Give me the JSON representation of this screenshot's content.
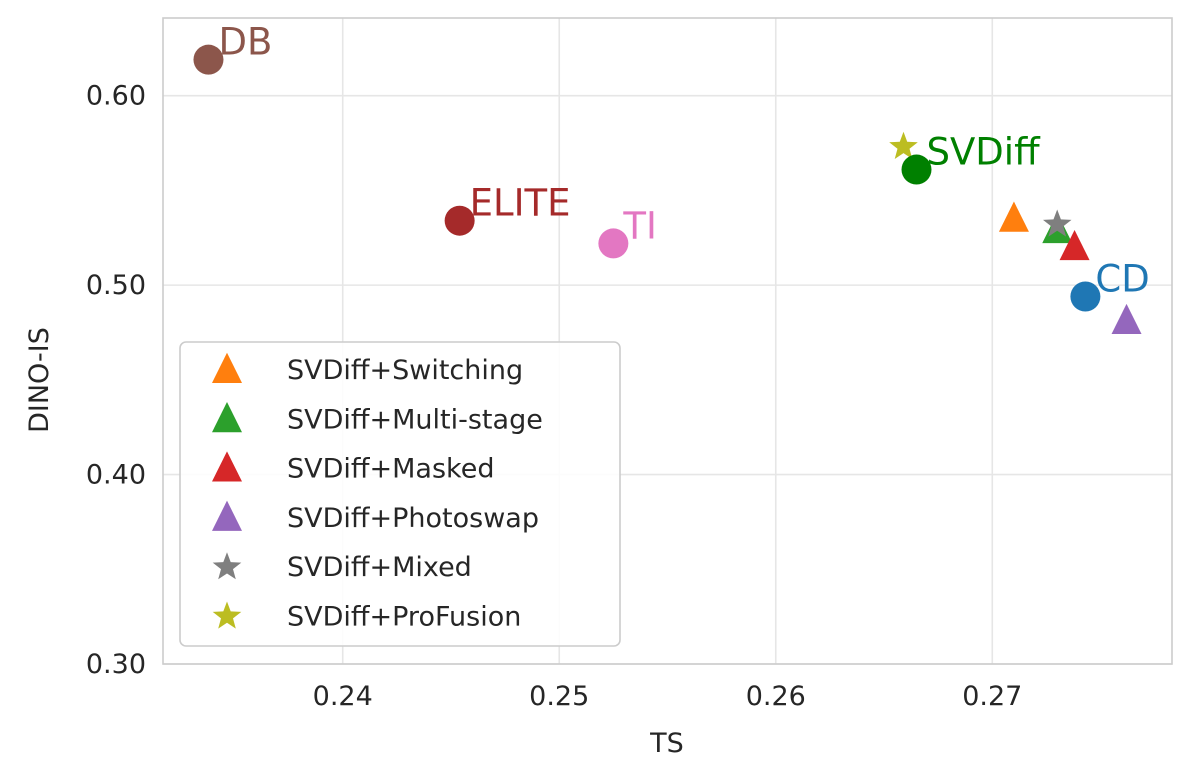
{
  "chart_data": {
    "type": "scatter",
    "xlabel": "TS",
    "ylabel": "DINO-IS",
    "xlim": [
      0.2317,
      0.2783
    ],
    "ylim": [
      0.3,
      0.641
    ],
    "x_ticks": [
      0.24,
      0.25,
      0.26,
      0.27
    ],
    "y_ticks": [
      0.3,
      0.4,
      0.5,
      0.6
    ],
    "x_tick_labels": [
      "0.24",
      "0.25",
      "0.26",
      "0.27"
    ],
    "y_tick_labels": [
      "0.30",
      "0.40",
      "0.50",
      "0.60"
    ],
    "grid": true,
    "labeled_points": [
      {
        "label": "DB",
        "x": 0.2338,
        "y": 0.619,
        "color": "#8c564b"
      },
      {
        "label": "ELITE",
        "x": 0.2454,
        "y": 0.534,
        "color": "#a52a2a"
      },
      {
        "label": "TI",
        "x": 0.2525,
        "y": 0.522,
        "color": "#e377c2"
      },
      {
        "label": "SVDiff",
        "x": 0.2665,
        "y": 0.561,
        "color": "#008000"
      },
      {
        "label": "CD",
        "x": 0.2743,
        "y": 0.494,
        "color": "#1f77b4"
      }
    ],
    "series": [
      {
        "name": "SVDiff+Switching",
        "marker": "triangle",
        "color": "#ff7f0e",
        "x": 0.271,
        "y": 0.535
      },
      {
        "name": "SVDiff+Multi-stage",
        "marker": "triangle",
        "color": "#2ca02c",
        "x": 0.273,
        "y": 0.529
      },
      {
        "name": "SVDiff+Masked",
        "marker": "triangle",
        "color": "#d62728",
        "x": 0.2738,
        "y": 0.52
      },
      {
        "name": "SVDiff+Photoswap",
        "marker": "triangle",
        "color": "#9467bd",
        "x": 0.2762,
        "y": 0.481
      },
      {
        "name": "SVDiff+Mixed",
        "marker": "star",
        "color": "#7f7f7f",
        "x": 0.273,
        "y": 0.532
      },
      {
        "name": "SVDiff+ProFusion",
        "marker": "star",
        "color": "#bcbd22",
        "x": 0.2659,
        "y": 0.573
      }
    ],
    "legend_placement": "lower-left"
  }
}
